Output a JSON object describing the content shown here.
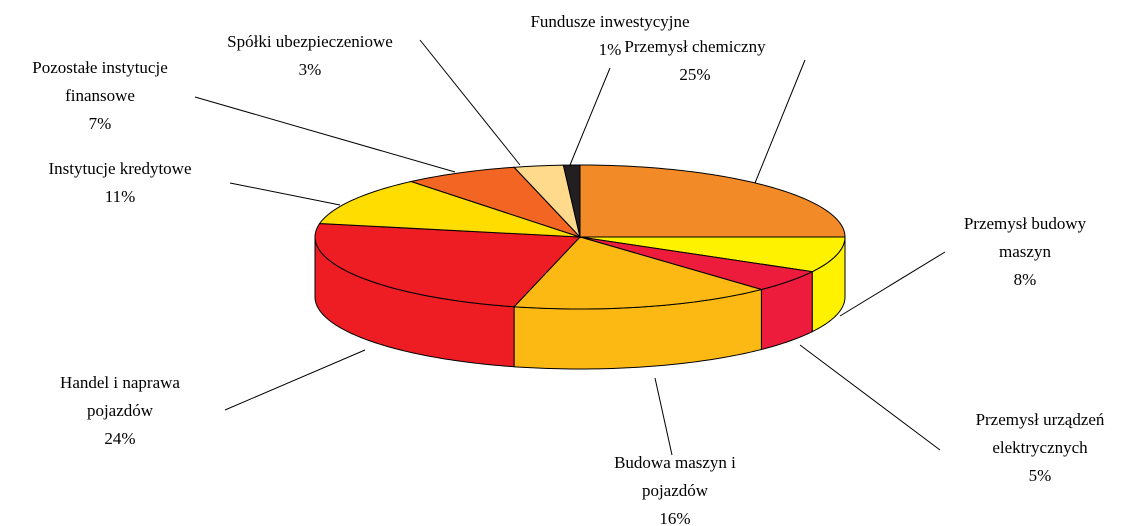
{
  "chart_data": {
    "type": "pie",
    "categories": [
      "Przemysł chemiczny",
      "Przemysł budowy maszyn",
      "Przemysł urządzeń elektrycznych",
      "Budowa maszyn i pojazdów",
      "Handel i naprawa pojazdów",
      "Instytucje kredytowe",
      "Pozostałe instytucje finansowe",
      "Spółki ubezpieczeniowe",
      "Fundusze inwestycyjne"
    ],
    "values": [
      25,
      8,
      5,
      16,
      24,
      11,
      7,
      3,
      1
    ],
    "value_labels": [
      "25%",
      "8%",
      "5%",
      "16%",
      "24%",
      "11%",
      "7%",
      "3%",
      "1%"
    ],
    "colors": [
      "#f28a28",
      "#fff200",
      "#ee1c3c",
      "#fdb913",
      "#ee1d23",
      "#ffdd00",
      "#f26522",
      "#ffd98c",
      "#231f20"
    ]
  }
}
